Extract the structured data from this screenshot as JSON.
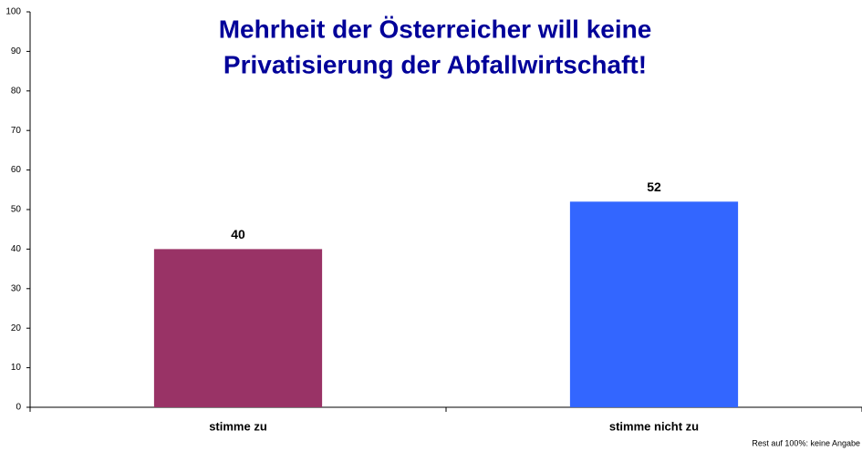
{
  "chart_data": {
    "type": "bar",
    "title": [
      "Mehrheit der Österreicher will keine",
      "Privatisierung der Abfallwirtschaft!"
    ],
    "categories": [
      "stimme zu",
      "stimme nicht zu"
    ],
    "values": [
      40,
      52
    ],
    "colors": [
      "#993366",
      "#3366ff"
    ],
    "ylim": [
      0,
      100
    ],
    "yticks": [
      0,
      10,
      20,
      30,
      40,
      50,
      60,
      70,
      80,
      90,
      100
    ],
    "grid": false,
    "note": "Rest auf 100%: keine Angabe"
  }
}
